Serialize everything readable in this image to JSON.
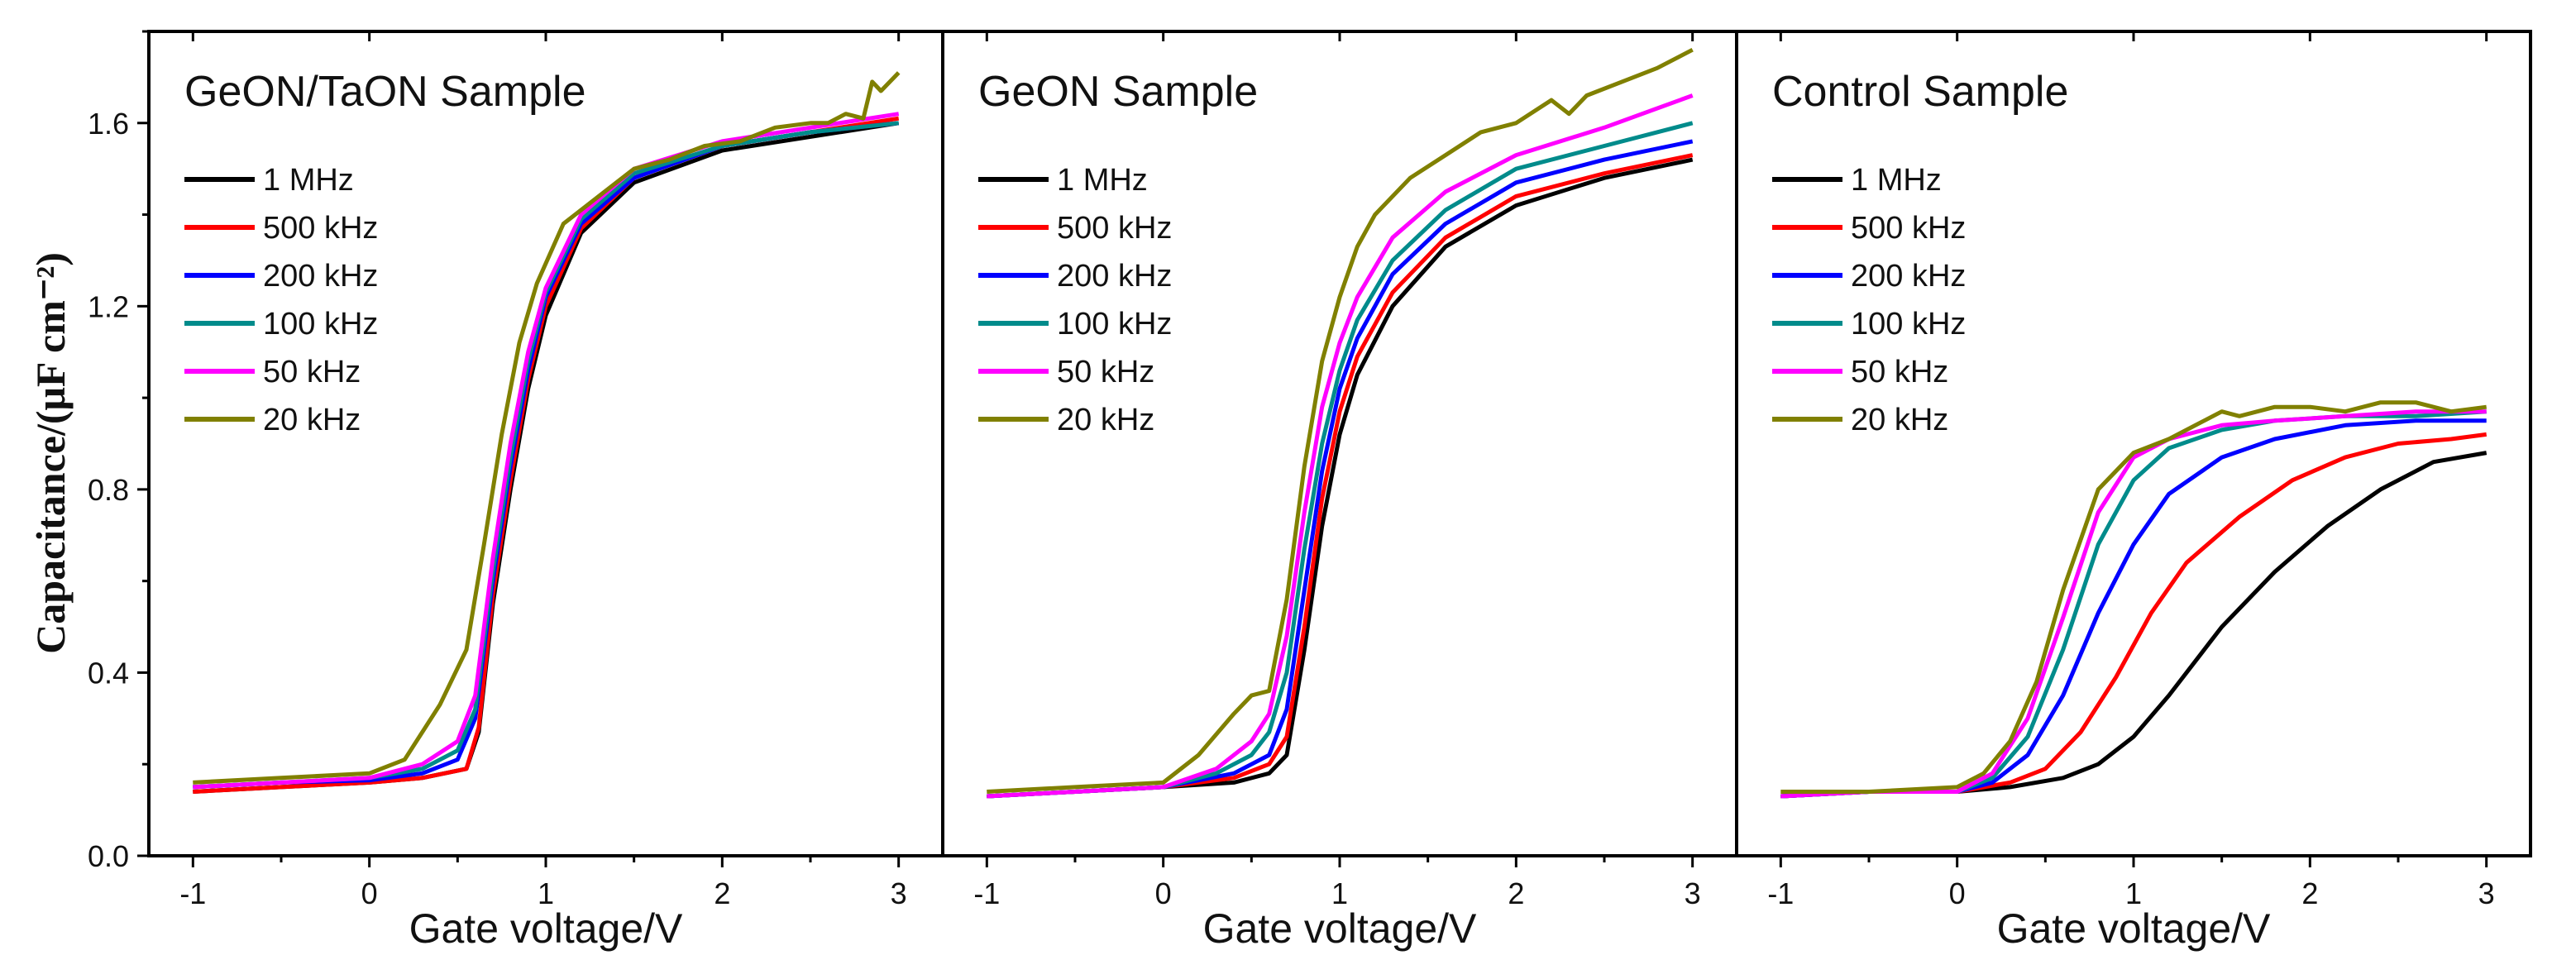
{
  "figure": {
    "ylabel": "Capacitance/(μF cm⁻²)"
  },
  "chart_data": [
    {
      "type": "line",
      "title": "GeON/TaON Sample",
      "xlabel": "Gate voltage/V",
      "ylabel": "Capacitance/(μF cm⁻²)",
      "xlim": [
        -1.25,
        3.25
      ],
      "ylim": [
        0.0,
        1.8
      ],
      "xticks": [
        -1,
        0,
        1,
        2,
        3
      ],
      "xtick_labels": [
        "-1",
        "0",
        "1",
        "2",
        "3"
      ],
      "yticks": [
        0.0,
        0.4,
        0.8,
        1.2,
        1.6
      ],
      "ytick_labels": [
        "0.0",
        "0.4",
        "0.8",
        "1.2",
        "1.6"
      ],
      "legend": "top-left",
      "series": [
        {
          "name": "1 MHz",
          "color": "#000000",
          "x": [
            -1,
            -0.5,
            0,
            0.3,
            0.55,
            0.62,
            0.7,
            0.8,
            0.9,
            1.0,
            1.2,
            1.5,
            2.0,
            2.5,
            3.0
          ],
          "y": [
            0.14,
            0.15,
            0.16,
            0.17,
            0.19,
            0.27,
            0.55,
            0.8,
            1.02,
            1.18,
            1.36,
            1.47,
            1.54,
            1.57,
            1.6
          ]
        },
        {
          "name": "500 kHz",
          "color": "#ff0000",
          "x": [
            -1,
            -0.5,
            0,
            0.3,
            0.55,
            0.62,
            0.7,
            0.8,
            0.9,
            1.0,
            1.2,
            1.5,
            2.0,
            2.5,
            3.0
          ],
          "y": [
            0.14,
            0.15,
            0.16,
            0.17,
            0.19,
            0.28,
            0.57,
            0.82,
            1.04,
            1.2,
            1.37,
            1.48,
            1.55,
            1.58,
            1.61
          ]
        },
        {
          "name": "200 kHz",
          "color": "#0000ff",
          "x": [
            -1,
            -0.5,
            0,
            0.3,
            0.5,
            0.6,
            0.7,
            0.8,
            0.9,
            1.0,
            1.2,
            1.5,
            2.0,
            2.5,
            3.0
          ],
          "y": [
            0.15,
            0.16,
            0.165,
            0.18,
            0.21,
            0.3,
            0.6,
            0.85,
            1.06,
            1.22,
            1.38,
            1.48,
            1.55,
            1.58,
            1.6
          ]
        },
        {
          "name": "100 kHz",
          "color": "#008b8b",
          "x": [
            -1,
            -0.5,
            0,
            0.3,
            0.5,
            0.6,
            0.7,
            0.8,
            0.9,
            1.0,
            1.2,
            1.5,
            2.0,
            2.5,
            3.0
          ],
          "y": [
            0.15,
            0.16,
            0.17,
            0.19,
            0.23,
            0.32,
            0.62,
            0.87,
            1.08,
            1.23,
            1.39,
            1.49,
            1.55,
            1.58,
            1.6
          ]
        },
        {
          "name": "50 kHz",
          "color": "#ff00ff",
          "x": [
            -1,
            -0.5,
            0,
            0.3,
            0.5,
            0.6,
            0.7,
            0.8,
            0.9,
            1.0,
            1.2,
            1.5,
            2.0,
            2.5,
            3.0
          ],
          "y": [
            0.15,
            0.16,
            0.17,
            0.2,
            0.25,
            0.35,
            0.65,
            0.9,
            1.1,
            1.24,
            1.4,
            1.5,
            1.56,
            1.59,
            1.62
          ]
        },
        {
          "name": "20 kHz",
          "color": "#808000",
          "x": [
            -1,
            -0.5,
            0,
            0.2,
            0.4,
            0.55,
            0.65,
            0.75,
            0.85,
            0.95,
            1.1,
            1.3,
            1.5,
            1.7,
            1.9,
            2.1,
            2.3,
            2.5,
            2.6,
            2.7,
            2.8,
            2.85,
            2.9,
            3.0
          ],
          "y": [
            0.16,
            0.17,
            0.18,
            0.21,
            0.33,
            0.45,
            0.68,
            0.92,
            1.12,
            1.25,
            1.38,
            1.44,
            1.5,
            1.52,
            1.55,
            1.56,
            1.59,
            1.6,
            1.6,
            1.62,
            1.61,
            1.69,
            1.67,
            1.71
          ]
        }
      ]
    },
    {
      "type": "line",
      "title": "GeON Sample",
      "xlabel": "Gate voltage/V",
      "ylabel": "Capacitance/(μF cm⁻²)",
      "xlim": [
        -1.25,
        3.25
      ],
      "ylim": [
        0.0,
        1.8
      ],
      "xticks": [
        -1,
        0,
        1,
        2,
        3
      ],
      "xtick_labels": [
        "-1",
        "0",
        "1",
        "2",
        "3"
      ],
      "legend": "top-left",
      "series": [
        {
          "name": "1 MHz",
          "color": "#000000",
          "x": [
            -1,
            -0.5,
            0,
            0.4,
            0.6,
            0.7,
            0.8,
            0.9,
            1.0,
            1.1,
            1.3,
            1.6,
            2.0,
            2.5,
            3.0
          ],
          "y": [
            0.13,
            0.14,
            0.15,
            0.16,
            0.18,
            0.22,
            0.45,
            0.72,
            0.92,
            1.05,
            1.2,
            1.33,
            1.42,
            1.48,
            1.52
          ]
        },
        {
          "name": "500 kHz",
          "color": "#ff0000",
          "x": [
            -1,
            -0.5,
            0,
            0.4,
            0.6,
            0.7,
            0.8,
            0.9,
            1.0,
            1.1,
            1.3,
            1.6,
            2.0,
            2.5,
            3.0
          ],
          "y": [
            0.13,
            0.14,
            0.15,
            0.17,
            0.2,
            0.26,
            0.5,
            0.78,
            0.97,
            1.09,
            1.23,
            1.35,
            1.44,
            1.49,
            1.53
          ]
        },
        {
          "name": "200 kHz",
          "color": "#0000ff",
          "x": [
            -1,
            -0.5,
            0,
            0.4,
            0.6,
            0.7,
            0.8,
            0.9,
            1.0,
            1.1,
            1.3,
            1.6,
            2.0,
            2.5,
            3.0
          ],
          "y": [
            0.13,
            0.14,
            0.15,
            0.18,
            0.22,
            0.32,
            0.58,
            0.84,
            1.02,
            1.13,
            1.27,
            1.38,
            1.47,
            1.52,
            1.56
          ]
        },
        {
          "name": "100 kHz",
          "color": "#008b8b",
          "x": [
            -1,
            -0.5,
            0,
            0.3,
            0.5,
            0.6,
            0.7,
            0.8,
            0.9,
            1.0,
            1.1,
            1.3,
            1.6,
            2.0,
            2.5,
            3.0
          ],
          "y": [
            0.13,
            0.14,
            0.15,
            0.18,
            0.22,
            0.27,
            0.4,
            0.67,
            0.9,
            1.06,
            1.17,
            1.3,
            1.41,
            1.5,
            1.55,
            1.6
          ]
        },
        {
          "name": "50 kHz",
          "color": "#ff00ff",
          "x": [
            -1,
            -0.5,
            0,
            0.3,
            0.5,
            0.6,
            0.7,
            0.8,
            0.9,
            1.0,
            1.1,
            1.3,
            1.6,
            2.0,
            2.5,
            3.0
          ],
          "y": [
            0.13,
            0.14,
            0.15,
            0.19,
            0.25,
            0.31,
            0.48,
            0.75,
            0.98,
            1.12,
            1.22,
            1.35,
            1.45,
            1.53,
            1.59,
            1.66
          ]
        },
        {
          "name": "20 kHz",
          "color": "#808000",
          "x": [
            -1,
            -0.5,
            0,
            0.2,
            0.4,
            0.5,
            0.6,
            0.7,
            0.8,
            0.9,
            1.0,
            1.1,
            1.2,
            1.4,
            1.6,
            1.8,
            2.0,
            2.2,
            2.3,
            2.4,
            2.6,
            2.8,
            3.0
          ],
          "y": [
            0.14,
            0.15,
            0.16,
            0.22,
            0.31,
            0.35,
            0.36,
            0.56,
            0.85,
            1.08,
            1.22,
            1.33,
            1.4,
            1.48,
            1.53,
            1.58,
            1.6,
            1.65,
            1.62,
            1.66,
            1.69,
            1.72,
            1.76
          ]
        }
      ]
    },
    {
      "type": "line",
      "title": "Control Sample",
      "xlabel": "Gate voltage/V",
      "ylabel": "Capacitance/(μF cm⁻²)",
      "xlim": [
        -1.25,
        3.25
      ],
      "ylim": [
        0.0,
        1.8
      ],
      "xticks": [
        -1,
        0,
        1,
        2,
        3
      ],
      "xtick_labels": [
        "-1",
        "0",
        "1",
        "2",
        "3"
      ],
      "legend": "top-left",
      "series": [
        {
          "name": "1 MHz",
          "color": "#000000",
          "x": [
            -1,
            -0.5,
            0,
            0.3,
            0.6,
            0.8,
            1.0,
            1.2,
            1.5,
            1.8,
            2.1,
            2.4,
            2.7,
            3.0
          ],
          "y": [
            0.13,
            0.14,
            0.14,
            0.15,
            0.17,
            0.2,
            0.26,
            0.35,
            0.5,
            0.62,
            0.72,
            0.8,
            0.86,
            0.88
          ]
        },
        {
          "name": "500 kHz",
          "color": "#ff0000",
          "x": [
            -1,
            -0.5,
            0,
            0.3,
            0.5,
            0.7,
            0.9,
            1.1,
            1.3,
            1.6,
            1.9,
            2.2,
            2.5,
            2.8,
            3.0
          ],
          "y": [
            0.13,
            0.14,
            0.14,
            0.16,
            0.19,
            0.27,
            0.39,
            0.53,
            0.64,
            0.74,
            0.82,
            0.87,
            0.9,
            0.91,
            0.92
          ]
        },
        {
          "name": "200 kHz",
          "color": "#0000ff",
          "x": [
            -1,
            -0.5,
            0,
            0.2,
            0.4,
            0.6,
            0.8,
            1.0,
            1.2,
            1.5,
            1.8,
            2.2,
            2.6,
            3.0
          ],
          "y": [
            0.13,
            0.14,
            0.14,
            0.16,
            0.22,
            0.35,
            0.53,
            0.68,
            0.79,
            0.87,
            0.91,
            0.94,
            0.95,
            0.95
          ]
        },
        {
          "name": "100 kHz",
          "color": "#008b8b",
          "x": [
            -1,
            -0.5,
            0,
            0.2,
            0.4,
            0.6,
            0.8,
            1.0,
            1.2,
            1.5,
            1.8,
            2.2,
            2.6,
            3.0
          ],
          "y": [
            0.13,
            0.14,
            0.14,
            0.17,
            0.26,
            0.45,
            0.68,
            0.82,
            0.89,
            0.93,
            0.95,
            0.96,
            0.96,
            0.97
          ]
        },
        {
          "name": "50 kHz",
          "color": "#ff00ff",
          "x": [
            -1,
            -0.5,
            0,
            0.2,
            0.4,
            0.6,
            0.8,
            1.0,
            1.2,
            1.5,
            1.8,
            2.2,
            2.6,
            3.0
          ],
          "y": [
            0.13,
            0.14,
            0.14,
            0.18,
            0.3,
            0.52,
            0.75,
            0.87,
            0.91,
            0.94,
            0.95,
            0.96,
            0.97,
            0.97
          ]
        },
        {
          "name": "20 kHz",
          "color": "#808000",
          "x": [
            -1,
            -0.5,
            0,
            0.15,
            0.3,
            0.45,
            0.6,
            0.8,
            1.0,
            1.2,
            1.4,
            1.5,
            1.6,
            1.8,
            2.0,
            2.2,
            2.4,
            2.6,
            2.8,
            3.0
          ],
          "y": [
            0.14,
            0.14,
            0.15,
            0.18,
            0.25,
            0.38,
            0.58,
            0.8,
            0.88,
            0.91,
            0.95,
            0.97,
            0.96,
            0.98,
            0.98,
            0.97,
            0.99,
            0.99,
            0.97,
            0.98
          ]
        }
      ]
    }
  ]
}
